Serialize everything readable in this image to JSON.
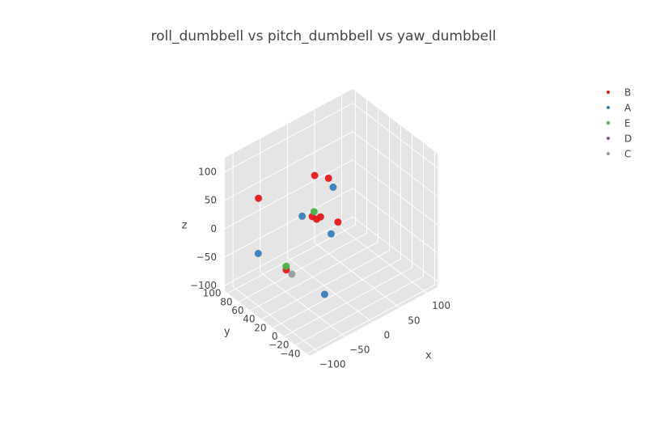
{
  "chart_data": {
    "type": "scatter",
    "title": "roll_dumbbell vs pitch_dumbbell vs yaw_dumbbell",
    "xlabel": "x",
    "ylabel": "y",
    "zlabel": "z",
    "xlim": [
      -115,
      120
    ],
    "ylim": [
      -45,
      105
    ],
    "zlim": [
      -110,
      125
    ],
    "x_ticks": [
      "−100",
      "−50",
      "0",
      "50",
      "100"
    ],
    "x_tick_values": [
      -100,
      -50,
      0,
      50,
      100
    ],
    "y_ticks": [
      "−40",
      "−20",
      "0",
      "20",
      "40",
      "60",
      "80",
      "100"
    ],
    "y_tick_values": [
      -40,
      -20,
      0,
      20,
      40,
      60,
      80,
      100
    ],
    "z_ticks": [
      "−100",
      "−50",
      "0",
      "50",
      "100"
    ],
    "z_tick_values": [
      -100,
      -50,
      0,
      50,
      100
    ],
    "legend_position": "top-right",
    "grid": true,
    "series": [
      {
        "name": "B",
        "color": "#e41a1c",
        "points": [
          [
            -100,
            -35,
            120
          ],
          [
            -95,
            -38,
            115
          ],
          [
            -90,
            -40,
            118
          ],
          [
            -60,
            -42,
            95
          ],
          [
            -100,
            60,
            80
          ],
          [
            45,
            100,
            15
          ],
          [
            60,
            90,
            10
          ],
          [
            -75,
            35,
            -40
          ]
        ]
      },
      {
        "name": "A",
        "color": "#377eb8",
        "points": [
          [
            -20,
            5,
            100
          ],
          [
            -60,
            -30,
            65
          ],
          [
            -30,
            50,
            20
          ],
          [
            -90,
            70,
            -30
          ],
          [
            -20,
            20,
            -100
          ]
        ]
      },
      {
        "name": "E",
        "color": "#4daf4a",
        "points": [
          [
            -55,
            5,
            75
          ],
          [
            -70,
            40,
            -40
          ]
        ]
      },
      {
        "name": "D",
        "color": "#984ea3",
        "points": []
      },
      {
        "name": "C",
        "color": "#999999",
        "points": [
          [
            -75,
            25,
            -40
          ]
        ]
      }
    ]
  }
}
